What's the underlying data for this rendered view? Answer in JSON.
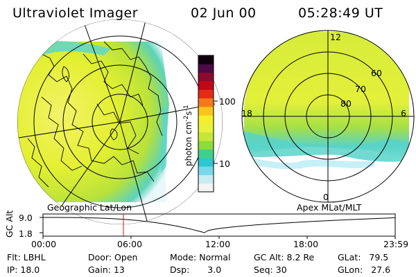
{
  "header": {
    "title": "Ultraviolet Imager",
    "date": "02 Jun 00",
    "time": "05:28:49 UT"
  },
  "colorbar": {
    "ticks": [
      {
        "label": "100",
        "value": 100
      },
      {
        "label": "10",
        "value": 10
      }
    ],
    "unit_prefix": "photon cm",
    "unit_sup1": "-2",
    "unit_mid": "s",
    "unit_sup2": "-1",
    "colors": [
      "#f4f4f4",
      "#c8ecf4",
      "#79d7ea",
      "#2fc6cf",
      "#3fd08c",
      "#8cdc3a",
      "#c7e63a",
      "#e8f23a",
      "#f4ee2c",
      "#fbc41c",
      "#f3791a",
      "#e52a16",
      "#c10716",
      "#8c0a30",
      "#4d0a45",
      "#100010"
    ]
  },
  "left_map": {
    "label": "Geographic Lat/Lon"
  },
  "right_map": {
    "label": "Apex MLat/MLT",
    "mlt_labels": [
      "12",
      "18",
      "6",
      "0"
    ],
    "lat_labels": [
      "60",
      "70",
      "80"
    ]
  },
  "altitude_plot": {
    "axis_label": "GC Alt",
    "y_ticks": [
      "9.0",
      "1.8"
    ],
    "x_ticks": [
      "00:00",
      "06:00",
      "12:00",
      "18:00",
      "23:59"
    ],
    "marker_time": "05:28:49",
    "marker_color": "#d01010"
  },
  "status": {
    "flt_label": "Flt:",
    "flt_value": "LBHL",
    "ip_label": "IP:",
    "ip_value": "18.0",
    "door_label": "Door:",
    "door_value": "Open",
    "gain_label": "Gain:",
    "gain_value": "13",
    "mode_label": "Mode:",
    "mode_value": "Normal",
    "dsp_label": "Dsp:",
    "dsp_value": "3.0",
    "gcalt_label": "GC Alt:",
    "gcalt_value": "8.2 Re",
    "seq_label": "Seq:",
    "seq_value": "30",
    "glat_label": "GLat:",
    "glat_value": "79.5",
    "glon_label": "GLon:",
    "glon_value": "27.6"
  }
}
